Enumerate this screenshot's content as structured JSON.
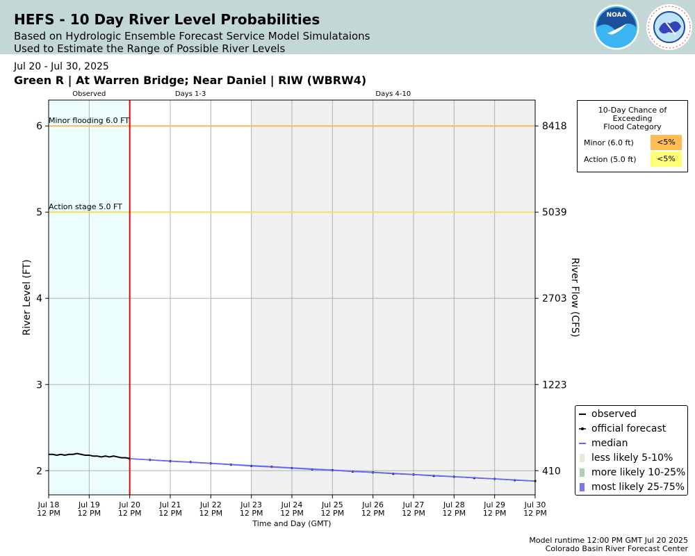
{
  "header": {
    "title": "HEFS - 10 Day River Level Probabilities",
    "subtitle_line1": "Based on Hydrologic Ensemble Forecast Service Model Simulataions",
    "subtitle_line2": "Used to Estimate the Range of Possible River Levels",
    "noaa_logo_text": "NOAA",
    "nws_logo_text": "NATIONAL WEATHER SERVICE"
  },
  "date_range": "Jul 20 - Jul 30, 2025",
  "station": "Green R | At Warren Bridge; Near Daniel | RIW (WBRW4)",
  "footer": {
    "line1": "Model runtime 12:00 PM GMT Jul 20 2025",
    "line2": "Colorado Basin River Forecast Center"
  },
  "probability_box": {
    "title_lines": [
      "10-Day Chance of",
      "Exceeding",
      "Flood Category"
    ],
    "rows": [
      {
        "label": "Minor (6.0 ft)",
        "value": "<5%",
        "color": "#ffbb55"
      },
      {
        "label": "Action (5.0 ft)",
        "value": "<5%",
        "color": "#ffff77"
      }
    ]
  },
  "legend": {
    "items": [
      {
        "label": "observed",
        "symbol": "line",
        "color": "#000000"
      },
      {
        "label": "official forecast",
        "symbol": "line-dots",
        "color": "#000000"
      },
      {
        "label": "median",
        "symbol": "line",
        "color": "#6666ff"
      },
      {
        "label": "less likely 5-10%",
        "symbol": "patch",
        "color": "#ebe6d6"
      },
      {
        "label": "more likely 10-25%",
        "symbol": "patch",
        "color": "#b2cfb2"
      },
      {
        "label": "most likely 25-75%",
        "symbol": "patch",
        "color": "#7777ee"
      }
    ]
  },
  "chart_data": {
    "type": "line",
    "xlabel": "Time and Day (GMT)",
    "ylabel": "River Level (FT)",
    "y2label": "River Flow (CFS)",
    "ylim": [
      1.72,
      6.3
    ],
    "grid": true,
    "legend_position": "lower-right",
    "x_start": "Jul 18 12 PM",
    "x_end": "Jul 30 12 PM",
    "x_ticks": [
      {
        "day": "Jul 18",
        "time": "12 PM"
      },
      {
        "day": "Jul 19",
        "time": "12 PM"
      },
      {
        "day": "Jul 20",
        "time": "12 PM"
      },
      {
        "day": "Jul 21",
        "time": "12 PM"
      },
      {
        "day": "Jul 22",
        "time": "12 PM"
      },
      {
        "day": "Jul 23",
        "time": "12 PM"
      },
      {
        "day": "Jul 24",
        "time": "12 PM"
      },
      {
        "day": "Jul 25",
        "time": "12 PM"
      },
      {
        "day": "Jul 26",
        "time": "12 PM"
      },
      {
        "day": "Jul 27",
        "time": "12 PM"
      },
      {
        "day": "Jul 28",
        "time": "12 PM"
      },
      {
        "day": "Jul 29",
        "time": "12 PM"
      },
      {
        "day": "Jul 30",
        "time": "12 PM"
      }
    ],
    "y_ticks": [
      2,
      3,
      4,
      5,
      6
    ],
    "y2_ticks": [
      {
        "stage": 2,
        "label": "410"
      },
      {
        "stage": 3,
        "label": "1223"
      },
      {
        "stage": 4,
        "label": "2703"
      },
      {
        "stage": 5,
        "label": "5039"
      },
      {
        "stage": 6,
        "label": "8418"
      }
    ],
    "periods": [
      {
        "label": "Observed",
        "start_day": 0,
        "end_day": 2,
        "color": "#edfefe"
      },
      {
        "label": "Days 1-3",
        "start_day": 2,
        "end_day": 5,
        "color": "#ffffff"
      },
      {
        "label": "Days 4-10",
        "start_day": 5,
        "end_day": 12,
        "color": "#f0f0f0"
      }
    ],
    "forecast_start_day": 2,
    "forecast_start_color": "#ee0000",
    "thresholds": [
      {
        "label": "Minor flooding 6.0 FT",
        "value": 6.0,
        "color": "#f7b866"
      },
      {
        "label": "Action stage 5.0 FT",
        "value": 5.0,
        "color": "#f2e060"
      }
    ],
    "series": [
      {
        "name": "observed",
        "color": "#000000",
        "x_days": [
          0,
          0.1,
          0.2,
          0.3,
          0.4,
          0.5,
          0.6,
          0.7,
          0.8,
          0.9,
          1.0,
          1.1,
          1.2,
          1.3,
          1.4,
          1.5,
          1.6,
          1.7,
          1.8,
          1.9,
          2.0
        ],
        "values": [
          2.19,
          2.19,
          2.18,
          2.19,
          2.18,
          2.19,
          2.19,
          2.2,
          2.19,
          2.18,
          2.18,
          2.17,
          2.17,
          2.16,
          2.17,
          2.16,
          2.17,
          2.16,
          2.15,
          2.15,
          2.14
        ]
      },
      {
        "name": "official forecast",
        "color": "#000000",
        "x_days": [
          2,
          2.5,
          3,
          3.5,
          4,
          4.5,
          5,
          5.5,
          6,
          6.5,
          7,
          7.5,
          8,
          8.5,
          9,
          9.5,
          10,
          10.5,
          11,
          11.5,
          12
        ],
        "values": [
          2.14,
          2.125,
          2.11,
          2.1,
          2.085,
          2.07,
          2.055,
          2.045,
          2.03,
          2.015,
          2.005,
          1.99,
          1.98,
          1.965,
          1.955,
          1.94,
          1.93,
          1.915,
          1.905,
          1.89,
          1.88
        ]
      },
      {
        "name": "median",
        "color": "#6666ff",
        "x_days": [
          2,
          3,
          4,
          5,
          6,
          7,
          8,
          9,
          10,
          11,
          12
        ],
        "values": [
          2.14,
          2.11,
          2.085,
          2.055,
          2.03,
          2.005,
          1.98,
          1.955,
          1.93,
          1.905,
          1.88
        ]
      }
    ],
    "bands": [
      {
        "name": "most likely 25-75%",
        "color": "#7777ee",
        "x_days": [
          2,
          12
        ],
        "lower": [
          2.135,
          1.873
        ],
        "upper": [
          2.145,
          1.887
        ]
      }
    ]
  }
}
